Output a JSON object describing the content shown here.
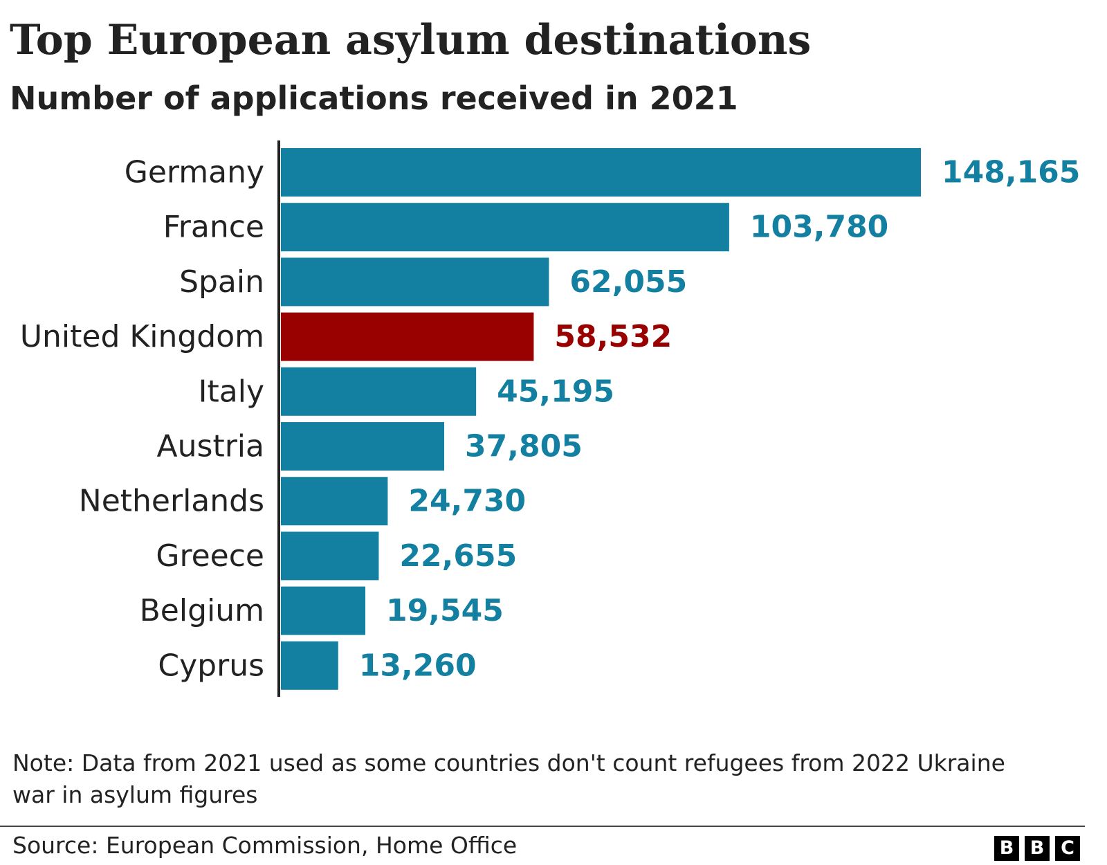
{
  "chart_data": {
    "type": "bar",
    "orientation": "horizontal",
    "title": "Top European asylum destinations",
    "subtitle": "Number of applications received in 2021",
    "categories": [
      "Germany",
      "France",
      "Spain",
      "United Kingdom",
      "Italy",
      "Austria",
      "Netherlands",
      "Greece",
      "Belgium",
      "Cyprus"
    ],
    "values": [
      148165,
      103780,
      62055,
      58532,
      45195,
      37805,
      24730,
      22655,
      19545,
      13260
    ],
    "value_labels": [
      "148,165",
      "103,780",
      "62,055",
      "58,532",
      "45,195",
      "37,805",
      "24,730",
      "22,655",
      "19,545",
      "13,260"
    ],
    "highlight": "United Kingdom",
    "colors": {
      "default": "#1380a1",
      "highlight": "#990000"
    },
    "xlim": [
      0,
      148165
    ],
    "grid": false,
    "note": "Note: Data from 2021 used as some countries don't count refugees from 2022 Ukraine war in asylum figures",
    "source": "Source: European Commission, Home Office"
  },
  "logo": {
    "letters": [
      "B",
      "B",
      "C"
    ]
  }
}
